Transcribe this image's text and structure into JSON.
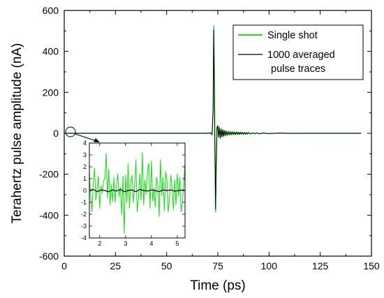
{
  "chart_data": [
    {
      "id": "main",
      "type": "line",
      "xlabel": "Time (ps)",
      "ylabel": "Terahertz pulse amplitude (nA)",
      "xlim": [
        0,
        150
      ],
      "ylim": [
        -600,
        600
      ],
      "x_ticks": [
        0,
        25,
        50,
        75,
        100,
        125,
        150
      ],
      "y_ticks": [
        -600,
        -400,
        -200,
        0,
        200,
        400,
        600
      ],
      "legend_position": "top-right",
      "grid": false,
      "series": [
        {
          "name": "Single shot",
          "color": "#22dd22",
          "points": [
            [
              0,
              0
            ],
            [
              20,
              0
            ],
            [
              40,
              0
            ],
            [
              60,
              0
            ],
            [
              70,
              0
            ],
            [
              71.5,
              2
            ],
            [
              72.2,
              -8
            ],
            [
              72.7,
              120
            ],
            [
              73.0,
              525
            ],
            [
              73.3,
              260
            ],
            [
              73.6,
              -100
            ],
            [
              73.9,
              -385
            ],
            [
              74.2,
              -160
            ],
            [
              74.6,
              30
            ],
            [
              75.0,
              38
            ],
            [
              75.4,
              -20
            ],
            [
              75.8,
              30
            ],
            [
              76.2,
              -25
            ],
            [
              76.6,
              22
            ],
            [
              77.0,
              -18
            ],
            [
              77.4,
              18
            ],
            [
              77.8,
              -15
            ],
            [
              78.2,
              14
            ],
            [
              78.6,
              -12
            ],
            [
              79.0,
              12
            ],
            [
              79.5,
              -10
            ],
            [
              80,
              10
            ],
            [
              80.5,
              -9
            ],
            [
              81,
              9
            ],
            [
              81.5,
              -8
            ],
            [
              82,
              8
            ],
            [
              82.5,
              -7
            ],
            [
              83,
              7
            ],
            [
              83.5,
              -7
            ],
            [
              84,
              7
            ],
            [
              84.5,
              -6
            ],
            [
              85,
              6
            ],
            [
              85.5,
              -6
            ],
            [
              86,
              6
            ],
            [
              86.5,
              -5
            ],
            [
              87,
              5
            ],
            [
              87.5,
              -5
            ],
            [
              88,
              5
            ],
            [
              88.5,
              -5
            ],
            [
              89,
              4
            ],
            [
              89.5,
              -4
            ],
            [
              90,
              4
            ],
            [
              91,
              -4
            ],
            [
              92,
              3
            ],
            [
              93,
              -3
            ],
            [
              94,
              3
            ],
            [
              95,
              -3
            ],
            [
              97,
              2
            ],
            [
              100,
              -2
            ],
            [
              105,
              1
            ],
            [
              110,
              -1
            ],
            [
              120,
              0
            ],
            [
              130,
              0
            ],
            [
              140,
              0
            ],
            [
              145,
              0
            ]
          ]
        },
        {
          "name": "1000 averaged\npulse traces",
          "color": "#000000",
          "points": [
            [
              0,
              0
            ],
            [
              20,
              0
            ],
            [
              40,
              0
            ],
            [
              60,
              0
            ],
            [
              70,
              0
            ],
            [
              71.5,
              1
            ],
            [
              72.2,
              -5
            ],
            [
              72.7,
              110
            ],
            [
              73.0,
              505
            ],
            [
              73.3,
              250
            ],
            [
              73.6,
              -95
            ],
            [
              73.9,
              -370
            ],
            [
              74.2,
              -150
            ],
            [
              74.6,
              28
            ],
            [
              75.0,
              35
            ],
            [
              75.4,
              -18
            ],
            [
              75.8,
              28
            ],
            [
              76.2,
              -23
            ],
            [
              76.6,
              20
            ],
            [
              77.0,
              -17
            ],
            [
              77.4,
              17
            ],
            [
              77.8,
              -14
            ],
            [
              78.2,
              13
            ],
            [
              78.6,
              -11
            ],
            [
              79.0,
              11
            ],
            [
              79.5,
              -9
            ],
            [
              80,
              9
            ],
            [
              80.5,
              -8
            ],
            [
              81,
              8
            ],
            [
              81.5,
              -7
            ],
            [
              82,
              7
            ],
            [
              82.5,
              -6
            ],
            [
              83,
              6
            ],
            [
              83.5,
              -6
            ],
            [
              84,
              6
            ],
            [
              84.5,
              -5
            ],
            [
              85,
              5
            ],
            [
              85.5,
              -5
            ],
            [
              86,
              5
            ],
            [
              86.5,
              -4
            ],
            [
              87,
              4
            ],
            [
              87.5,
              -4
            ],
            [
              88,
              4
            ],
            [
              88.5,
              -4
            ],
            [
              89,
              3
            ],
            [
              89.5,
              -3
            ],
            [
              90,
              3
            ],
            [
              91,
              -3
            ],
            [
              92,
              2
            ],
            [
              93,
              -2
            ],
            [
              94,
              2
            ],
            [
              95,
              -2
            ],
            [
              97,
              1
            ],
            [
              100,
              -1
            ],
            [
              105,
              1
            ],
            [
              110,
              0
            ],
            [
              120,
              0
            ],
            [
              130,
              0
            ],
            [
              140,
              0
            ],
            [
              145,
              0
            ]
          ]
        }
      ]
    },
    {
      "id": "inset",
      "type": "line",
      "xlabel": "",
      "ylabel": "",
      "xlim": [
        1.6,
        5.3
      ],
      "ylim": [
        -4,
        4
      ],
      "x_ticks": [
        2,
        3,
        4,
        5
      ],
      "y_ticks": [
        -4,
        -3,
        -2,
        -1,
        0,
        1,
        2,
        3,
        4
      ],
      "grid": false,
      "series": [
        {
          "name": "",
          "color": "#22dd22",
          "x": [
            1.6,
            1.65,
            1.7,
            1.75,
            1.8,
            1.85,
            1.9,
            1.95,
            2.0,
            2.05,
            2.1,
            2.15,
            2.2,
            2.25,
            2.3,
            2.35,
            2.4,
            2.45,
            2.5,
            2.55,
            2.6,
            2.65,
            2.7,
            2.75,
            2.8,
            2.85,
            2.9,
            2.95,
            3.0,
            3.05,
            3.1,
            3.15,
            3.2,
            3.25,
            3.3,
            3.35,
            3.4,
            3.45,
            3.5,
            3.55,
            3.6,
            3.65,
            3.7,
            3.75,
            3.8,
            3.85,
            3.9,
            3.95,
            4.0,
            4.05,
            4.1,
            4.15,
            4.2,
            4.25,
            4.3,
            4.35,
            4.4,
            4.45,
            4.5,
            4.55,
            4.6,
            4.65,
            4.7,
            4.75,
            4.8,
            4.85,
            4.9,
            4.95,
            5.0,
            5.05,
            5.1,
            5.15,
            5.2,
            5.25,
            5.3
          ],
          "y": [
            1.5,
            -0.5,
            -1.8,
            0.6,
            1.9,
            -0.8,
            0.2,
            1.2,
            -1.5,
            0.4,
            -0.2,
            0.8,
            1.0,
            3.1,
            -0.6,
            1.8,
            -1.2,
            0.5,
            -0.9,
            1.1,
            -1.0,
            0.6,
            1.4,
            -0.5,
            0.3,
            -2.0,
            1.2,
            -3.6,
            1.3,
            -1.0,
            2.3,
            -1.5,
            0.7,
            1.3,
            -1.0,
            0.4,
            2.6,
            -1.8,
            -0.6,
            1.4,
            -0.8,
            3.2,
            -1.2,
            0.9,
            -0.3,
            1.7,
            2.3,
            -1.5,
            2.5,
            -0.9,
            0.2,
            -1.4,
            1.1,
            0.3,
            -2.2,
            2.6,
            -0.4,
            1.1,
            -1.7,
            1.6,
            0.9,
            -1.8,
            -0.8,
            1.3,
            0.2,
            -1.6,
            0.9,
            -1.2,
            1.4,
            -0.5,
            1.1,
            -1.8,
            -1.0,
            0.6,
            2.3
          ]
        },
        {
          "name": "",
          "color": "#000000",
          "x": [
            1.6,
            1.75,
            1.9,
            2.05,
            2.2,
            2.35,
            2.5,
            2.65,
            2.8,
            2.95,
            3.1,
            3.25,
            3.4,
            3.55,
            3.7,
            3.85,
            4.0,
            4.15,
            4.3,
            4.45,
            4.6,
            4.75,
            4.9,
            5.05,
            5.2,
            5.3
          ],
          "y": [
            0.0,
            0.1,
            -0.1,
            0.05,
            0.0,
            -0.1,
            0.05,
            -0.05,
            0.1,
            -0.1,
            0.0,
            0.05,
            -0.1,
            0.1,
            0.0,
            -0.05,
            0.05,
            0.0,
            -0.1,
            0.05,
            0.0,
            0.05,
            -0.05,
            0.0,
            0.05,
            0.0
          ]
        }
      ]
    }
  ]
}
